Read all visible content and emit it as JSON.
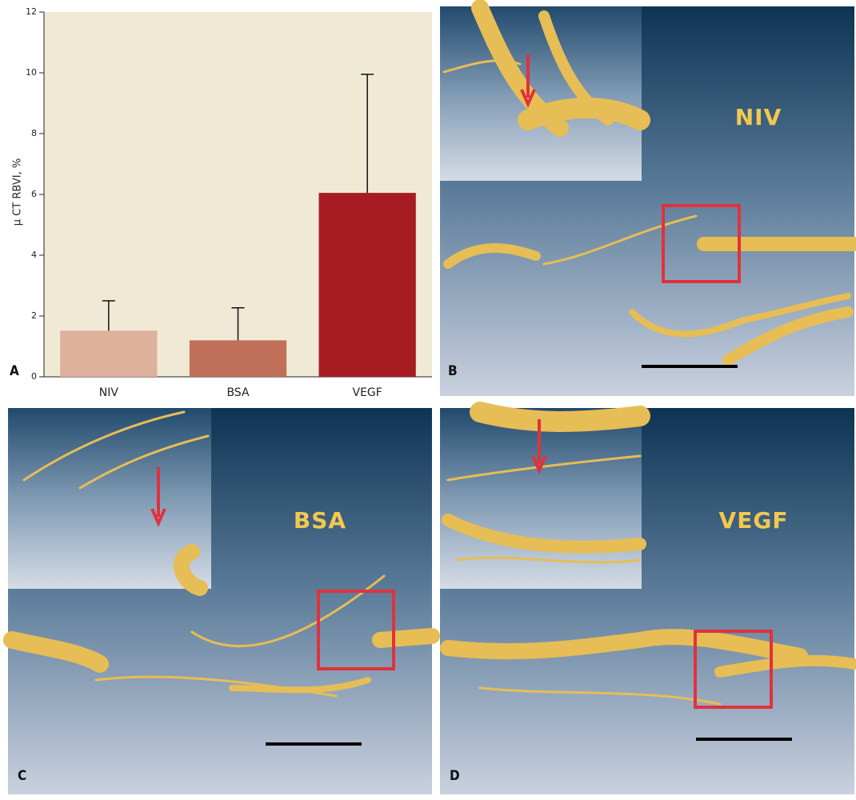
{
  "chart_data": {
    "type": "bar",
    "y_label": "μ CT RBVI, %",
    "categories": [
      "NIV",
      "BSA",
      "VEGF"
    ],
    "values": [
      1.52,
      1.2,
      6.05
    ],
    "errors": [
      0.98,
      1.07,
      3.9
    ],
    "colors": [
      "#dfb09c",
      "#c07058",
      "#a61c22"
    ],
    "ylim": [
      0,
      12
    ],
    "yticks": [
      0,
      2,
      4,
      6,
      8,
      10,
      12
    ]
  },
  "panels": [
    {
      "letter": "A"
    },
    {
      "letter": "B",
      "label": "NIV"
    },
    {
      "letter": "C",
      "label": "BSA"
    },
    {
      "letter": "D",
      "label": "VEGF"
    }
  ]
}
